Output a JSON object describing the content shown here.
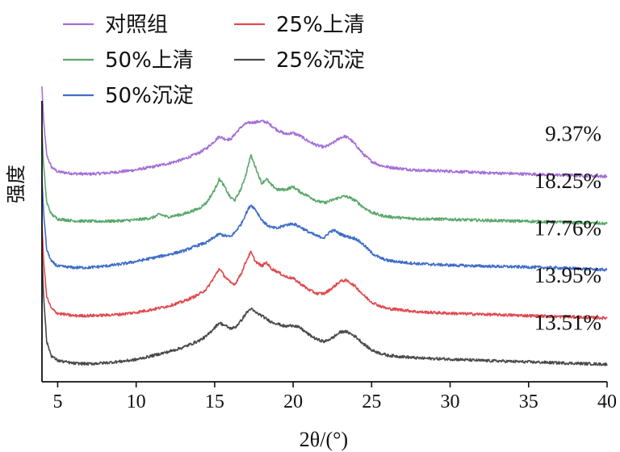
{
  "chart_data": {
    "type": "line",
    "xlabel": "2θ/(°)",
    "ylabel": "强度",
    "xlim": [
      4,
      40
    ],
    "xticks": [
      5,
      10,
      15,
      20,
      25,
      30,
      35,
      40
    ],
    "grid": false,
    "legend_placement": "top-left",
    "legend_columns": 2,
    "series": [
      {
        "name": "对照组",
        "color": "#a56fd6",
        "crystallinity": "9.37%",
        "offset": 4.0,
        "x": [
          4,
          4.1,
          4.3,
          4.6,
          5,
          6,
          7,
          8,
          9,
          10,
          11,
          12,
          13,
          14,
          14.5,
          15,
          15.3,
          15.6,
          16,
          16.3,
          16.7,
          17,
          17.3,
          17.6,
          18,
          18.3,
          18.6,
          19,
          19.5,
          20,
          20.5,
          21,
          21.5,
          22,
          22.5,
          23,
          23.3,
          23.6,
          24,
          24.5,
          25,
          25.5,
          26,
          27,
          28,
          30,
          32,
          35,
          38,
          40
        ],
        "y": [
          1.9,
          1.2,
          0.45,
          0.2,
          0.1,
          0.06,
          0.05,
          0.07,
          0.1,
          0.14,
          0.2,
          0.27,
          0.36,
          0.5,
          0.6,
          0.75,
          0.85,
          0.8,
          0.78,
          0.9,
          1.05,
          1.12,
          1.14,
          1.15,
          1.17,
          1.15,
          1.08,
          0.98,
          0.9,
          0.92,
          0.85,
          0.74,
          0.66,
          0.62,
          0.7,
          0.82,
          0.85,
          0.8,
          0.66,
          0.46,
          0.32,
          0.24,
          0.2,
          0.16,
          0.13,
          0.11,
          0.08,
          0.05,
          0.02,
          0.0
        ]
      },
      {
        "name": "50%上清",
        "color": "#5aa86b",
        "crystallinity": "18.25%",
        "offset": 3.0,
        "x": [
          4,
          4.1,
          4.3,
          4.6,
          5,
          6,
          7,
          8,
          9,
          10,
          11,
          11.5,
          12,
          13,
          14,
          14.5,
          15,
          15.3,
          15.6,
          16,
          16.3,
          16.7,
          17,
          17.3,
          17.6,
          18,
          18.3,
          18.6,
          19,
          19.5,
          20,
          20.5,
          21,
          21.5,
          22,
          22.5,
          23,
          23.3,
          23.6,
          24,
          24.5,
          25,
          25.5,
          26,
          27,
          28,
          30,
          32,
          35,
          38,
          40
        ],
        "y": [
          2.0,
          1.25,
          0.45,
          0.2,
          0.1,
          0.06,
          0.05,
          0.05,
          0.06,
          0.08,
          0.12,
          0.2,
          0.14,
          0.2,
          0.32,
          0.45,
          0.72,
          0.95,
          0.8,
          0.55,
          0.5,
          0.75,
          1.05,
          1.45,
          1.2,
          0.85,
          0.95,
          0.82,
          0.72,
          0.72,
          0.78,
          0.66,
          0.58,
          0.48,
          0.44,
          0.5,
          0.56,
          0.58,
          0.55,
          0.48,
          0.34,
          0.24,
          0.18,
          0.15,
          0.12,
          0.1,
          0.09,
          0.07,
          0.05,
          0.02,
          0.0
        ]
      },
      {
        "name": "50%沉淀",
        "color": "#3f6dc8",
        "crystallinity": "17.76%",
        "offset": 2.0,
        "x": [
          4,
          4.1,
          4.3,
          4.6,
          5,
          6,
          7,
          8,
          9,
          10,
          11,
          12,
          13,
          14,
          14.5,
          15,
          15.3,
          15.6,
          16,
          16.3,
          16.7,
          17,
          17.3,
          17.6,
          18,
          18.3,
          18.6,
          19,
          19.5,
          20,
          20.5,
          21,
          21.5,
          22,
          22.3,
          22.6,
          23,
          23.5,
          24,
          24.5,
          25,
          25.5,
          26,
          27,
          28,
          30,
          32,
          35,
          38,
          40
        ],
        "y": [
          2.0,
          1.25,
          0.45,
          0.2,
          0.1,
          0.07,
          0.07,
          0.1,
          0.14,
          0.2,
          0.27,
          0.34,
          0.42,
          0.55,
          0.6,
          0.72,
          0.78,
          0.75,
          0.72,
          0.82,
          1.0,
          1.22,
          1.4,
          1.3,
          1.08,
          0.98,
          0.92,
          0.9,
          0.97,
          1.0,
          0.92,
          0.82,
          0.74,
          0.7,
          0.82,
          0.86,
          0.78,
          0.72,
          0.68,
          0.55,
          0.38,
          0.28,
          0.22,
          0.18,
          0.15,
          0.12,
          0.1,
          0.08,
          0.05,
          0.02
        ]
      },
      {
        "name": "25%上清",
        "color": "#df4a4f",
        "crystallinity": "13.95%",
        "offset": 1.0,
        "x": [
          4,
          4.1,
          4.3,
          4.6,
          5,
          6,
          7,
          8,
          9,
          10,
          11,
          12,
          13,
          14,
          14.5,
          15,
          15.3,
          15.6,
          16,
          16.3,
          16.7,
          17,
          17.3,
          17.6,
          18,
          18.3,
          18.6,
          19,
          19.5,
          20,
          20.5,
          21,
          21.5,
          22,
          22.5,
          23,
          23.3,
          23.6,
          24,
          24.5,
          25,
          25.5,
          26,
          27,
          28,
          30,
          32,
          35,
          38,
          40
        ],
        "y": [
          2.0,
          1.25,
          0.45,
          0.2,
          0.1,
          0.05,
          0.05,
          0.06,
          0.08,
          0.12,
          0.18,
          0.25,
          0.35,
          0.5,
          0.62,
          0.88,
          1.05,
          0.9,
          0.75,
          0.72,
          0.95,
          1.2,
          1.4,
          1.2,
          1.1,
          1.18,
          1.05,
          0.98,
          0.88,
          0.84,
          0.72,
          0.6,
          0.52,
          0.52,
          0.64,
          0.78,
          0.8,
          0.76,
          0.66,
          0.48,
          0.34,
          0.26,
          0.2,
          0.17,
          0.13,
          0.1,
          0.08,
          0.05,
          0.02,
          0.0
        ]
      },
      {
        "name": "25%沉淀",
        "color": "#4a4a4a",
        "crystallinity": "13.51%",
        "offset": 0.0,
        "x": [
          4,
          4.1,
          4.3,
          4.6,
          5,
          6,
          7,
          8,
          9,
          10,
          11,
          12,
          13,
          14,
          14.5,
          15,
          15.3,
          15.6,
          16,
          16.3,
          16.7,
          17,
          17.3,
          17.6,
          18,
          18.3,
          18.6,
          19,
          19.5,
          20,
          20.5,
          21,
          21.5,
          22,
          22.5,
          23,
          23.3,
          23.6,
          24,
          24.5,
          25,
          25.5,
          26,
          27,
          28,
          30,
          32,
          35,
          38,
          40
        ],
        "y": [
          2.4,
          1.5,
          0.5,
          0.2,
          0.1,
          0.04,
          0.03,
          0.05,
          0.08,
          0.12,
          0.2,
          0.28,
          0.38,
          0.52,
          0.62,
          0.8,
          0.9,
          0.85,
          0.78,
          0.8,
          0.95,
          1.1,
          1.2,
          1.12,
          1.05,
          0.98,
          0.92,
          0.88,
          0.82,
          0.85,
          0.78,
          0.65,
          0.55,
          0.5,
          0.58,
          0.7,
          0.72,
          0.68,
          0.6,
          0.45,
          0.32,
          0.26,
          0.21,
          0.18,
          0.15,
          0.13,
          0.1,
          0.07,
          0.04,
          0.02
        ]
      }
    ]
  }
}
